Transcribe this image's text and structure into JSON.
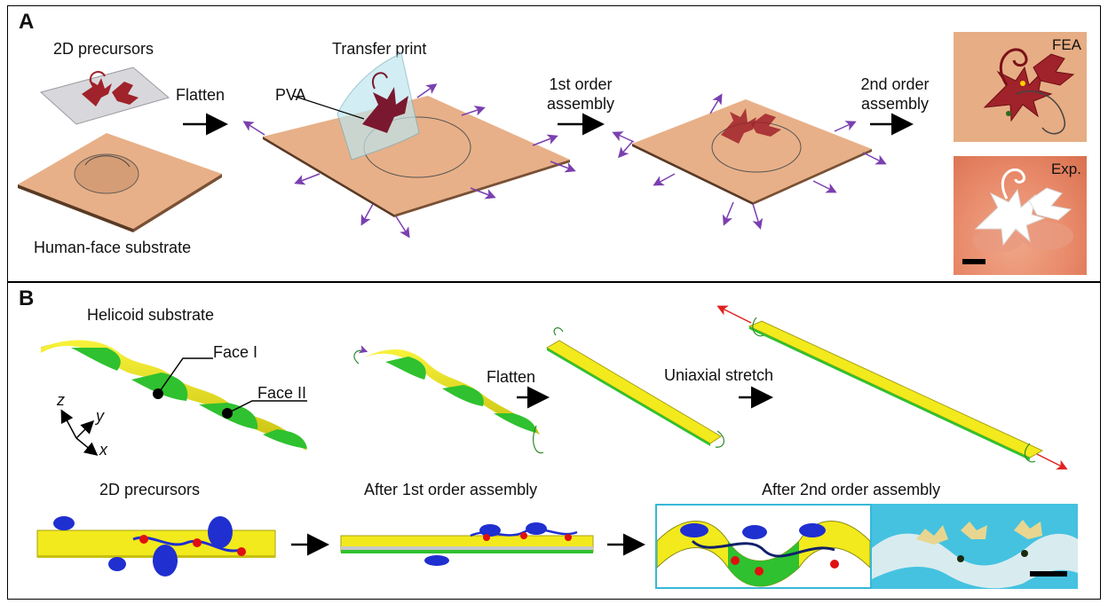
{
  "panel_a": {
    "label": "A",
    "precursors_label": "2D precursors",
    "substrate_label": "Human-face substrate",
    "flatten_label": "Flatten",
    "transfer_label": "Transfer print",
    "pva_label": "PVA",
    "first_order_label": "1st order\nassembly",
    "second_order_label": "2nd order\nassembly",
    "fea_label": "FEA",
    "exp_label": "Exp."
  },
  "panel_b": {
    "label": "B",
    "helicoid_label": "Helicoid substrate",
    "face1_label": "Face I",
    "face2_label": "Face II",
    "axis_z": "z",
    "axis_y": "y",
    "axis_x": "x",
    "flatten_label": "Flatten",
    "stretch_label": "Uniaxial stretch",
    "precursors_label": "2D precursors",
    "after_first_label": "After 1st order assembly",
    "after_second_label": "After 2nd order assembly"
  },
  "colors": {
    "substrate_tan": "#e8b088",
    "substrate_edge": "#5a3a24",
    "arrow_purple": "#7a3fb0",
    "structure_red": "#a0222a",
    "helix_yellow": "#f2ea1c",
    "helix_green": "#2fc12f",
    "leaf_blue": "#1f2fd0",
    "node_red": "#e01010",
    "inset_cyan": "#37b8d8",
    "stretch_red": "#e02020"
  }
}
